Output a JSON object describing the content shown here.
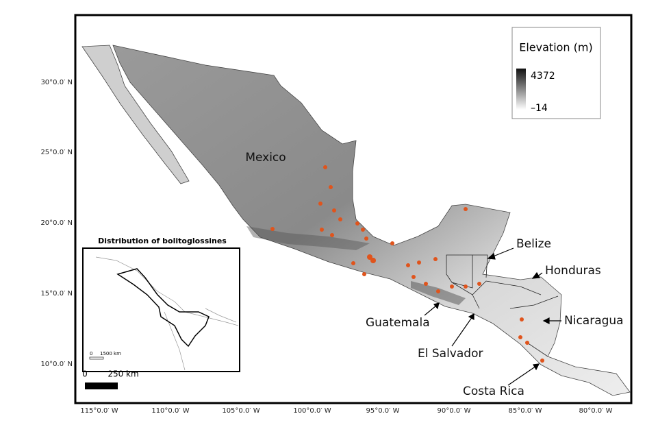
{
  "map": {
    "country_labels": [
      "Mexico",
      "Belize",
      "Honduras",
      "Nicaragua",
      "Guatemala",
      "El Salvador",
      "Costa Rica"
    ],
    "latitude_labels": [
      "30°0.0′ N",
      "25°0.0′ N",
      "20°0.0′ N",
      "15°0.0′ N",
      "10°0.0′ N"
    ],
    "longitude_labels": [
      "115°0.0′ W",
      "110°0.0′ W",
      "105°0.0′ W",
      "100°0.0′ W",
      "95°0.0′ W",
      "90°0.0′ W",
      "85°0.0′ W",
      "80°0.0′ W"
    ],
    "legend": {
      "title": "Elevation (m)",
      "max": "4372",
      "min": "–14"
    },
    "inset": {
      "title": "Distribution of bolitoglossines",
      "scale_start": "0",
      "scale_end": "1500 km"
    },
    "scale_bar": {
      "start": "0",
      "end": "250 km"
    }
  }
}
